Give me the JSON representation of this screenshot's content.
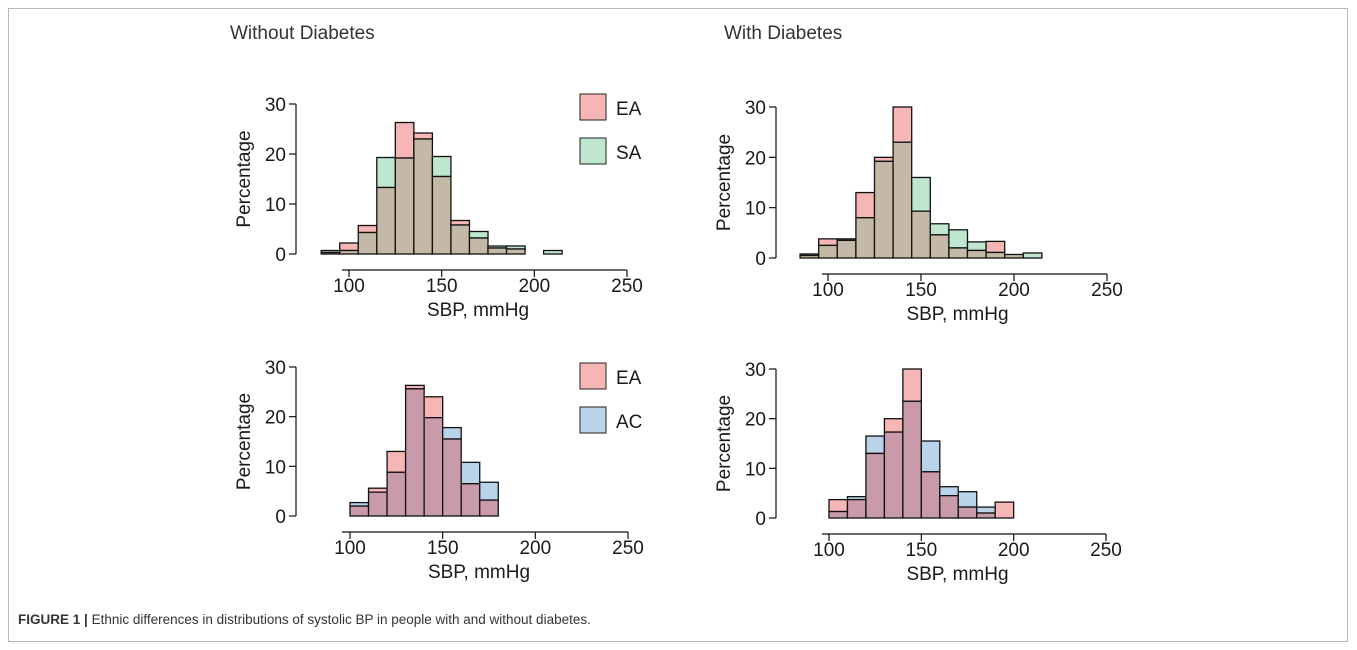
{
  "column_titles": {
    "left": "Without Diabetes",
    "right": "With Diabetes"
  },
  "caption": {
    "label": "FIGURE 1 |",
    "text": "Ethnic differences in distributions of systolic BP in people with and without diabetes."
  },
  "colors": {
    "EA": "#f7b6b6",
    "SA": "#bfe6cf",
    "AC": "#b9d3ea",
    "EA_SA_overlap": "#c4b9a6",
    "EA_AC_overlap": "#c89aaa",
    "edge": "#111111"
  },
  "chart_data": [
    {
      "id": "top-left",
      "type": "bar",
      "subtype": "overlaid-histogram",
      "xlabel": "SBP, mmHg",
      "ylabel": "Percentage",
      "xlim": [
        85,
        250
      ],
      "ylim": [
        0,
        30
      ],
      "xticks": [
        100,
        150,
        200,
        250
      ],
      "yticks": [
        0,
        10,
        20,
        30
      ],
      "legend": [
        "EA",
        "SA"
      ],
      "legend_position": "top-right",
      "bin_width": 10,
      "bin_starts": [
        85,
        95,
        105,
        115,
        125,
        135,
        145,
        155,
        165,
        175,
        185,
        195,
        205
      ],
      "series": [
        {
          "name": "EA",
          "values": [
            0.3,
            2.2,
            5.7,
            13.3,
            26.3,
            24.2,
            15.5,
            6.7,
            3.2,
            1.2,
            1.0,
            0.0,
            0.0
          ]
        },
        {
          "name": "SA",
          "values": [
            0.7,
            0.7,
            4.3,
            19.3,
            19.2,
            23.0,
            19.5,
            5.8,
            4.5,
            1.6,
            1.6,
            0.0,
            0.7
          ]
        }
      ]
    },
    {
      "id": "top-right",
      "type": "bar",
      "subtype": "overlaid-histogram",
      "xlabel": "SBP, mmHg",
      "ylabel": "Percentage",
      "xlim": [
        85,
        250
      ],
      "ylim": [
        0,
        30
      ],
      "xticks": [
        100,
        150,
        200,
        250
      ],
      "yticks": [
        0,
        10,
        20,
        30
      ],
      "legend": [],
      "bin_width": 10,
      "bin_starts": [
        85,
        95,
        105,
        115,
        125,
        135,
        145,
        155,
        165,
        175,
        185,
        195,
        205
      ],
      "series": [
        {
          "name": "EA",
          "values": [
            0.5,
            3.8,
            3.5,
            13.0,
            20.0,
            30.0,
            9.3,
            4.6,
            2.0,
            1.5,
            3.3,
            0.7,
            0.0
          ]
        },
        {
          "name": "SA",
          "values": [
            0.8,
            2.5,
            3.8,
            8.0,
            19.2,
            23.0,
            16.0,
            6.8,
            5.6,
            3.2,
            1.1,
            0.7,
            1.0
          ]
        }
      ]
    },
    {
      "id": "bottom-left",
      "type": "bar",
      "subtype": "overlaid-histogram",
      "xlabel": "SBP, mmHg",
      "ylabel": "Percentage",
      "xlim": [
        85,
        250
      ],
      "ylim": [
        0,
        30
      ],
      "xticks": [
        100,
        150,
        200,
        250
      ],
      "yticks": [
        0,
        10,
        20,
        30
      ],
      "legend": [
        "EA",
        "AC"
      ],
      "legend_position": "top-right",
      "bin_width": 10,
      "bin_starts": [
        100,
        110,
        120,
        130,
        140,
        150,
        160,
        170
      ],
      "series": [
        {
          "name": "EA",
          "values": [
            2.0,
            5.6,
            13.0,
            26.3,
            24.0,
            15.5,
            6.5,
            3.2
          ]
        },
        {
          "name": "AC",
          "values": [
            2.7,
            4.8,
            8.8,
            25.6,
            19.8,
            17.8,
            10.8,
            6.8
          ]
        }
      ]
    },
    {
      "id": "bottom-right",
      "type": "bar",
      "subtype": "overlaid-histogram",
      "xlabel": "SBP, mmHg",
      "ylabel": "Percentage",
      "xlim": [
        95,
        250
      ],
      "ylim": [
        0,
        30
      ],
      "xticks": [
        100,
        150,
        200,
        250
      ],
      "yticks": [
        0,
        10,
        20,
        30
      ],
      "legend": [],
      "bin_width": 10,
      "bin_starts": [
        100,
        110,
        120,
        130,
        140,
        150,
        160,
        170,
        180,
        190
      ],
      "series": [
        {
          "name": "EA",
          "values": [
            3.7,
            3.7,
            13.0,
            20.0,
            30.0,
            9.3,
            4.5,
            2.2,
            1.0,
            3.2
          ]
        },
        {
          "name": "AC",
          "values": [
            1.3,
            4.3,
            16.5,
            17.3,
            23.5,
            15.5,
            6.3,
            5.3,
            2.2,
            0.0
          ]
        }
      ]
    }
  ]
}
